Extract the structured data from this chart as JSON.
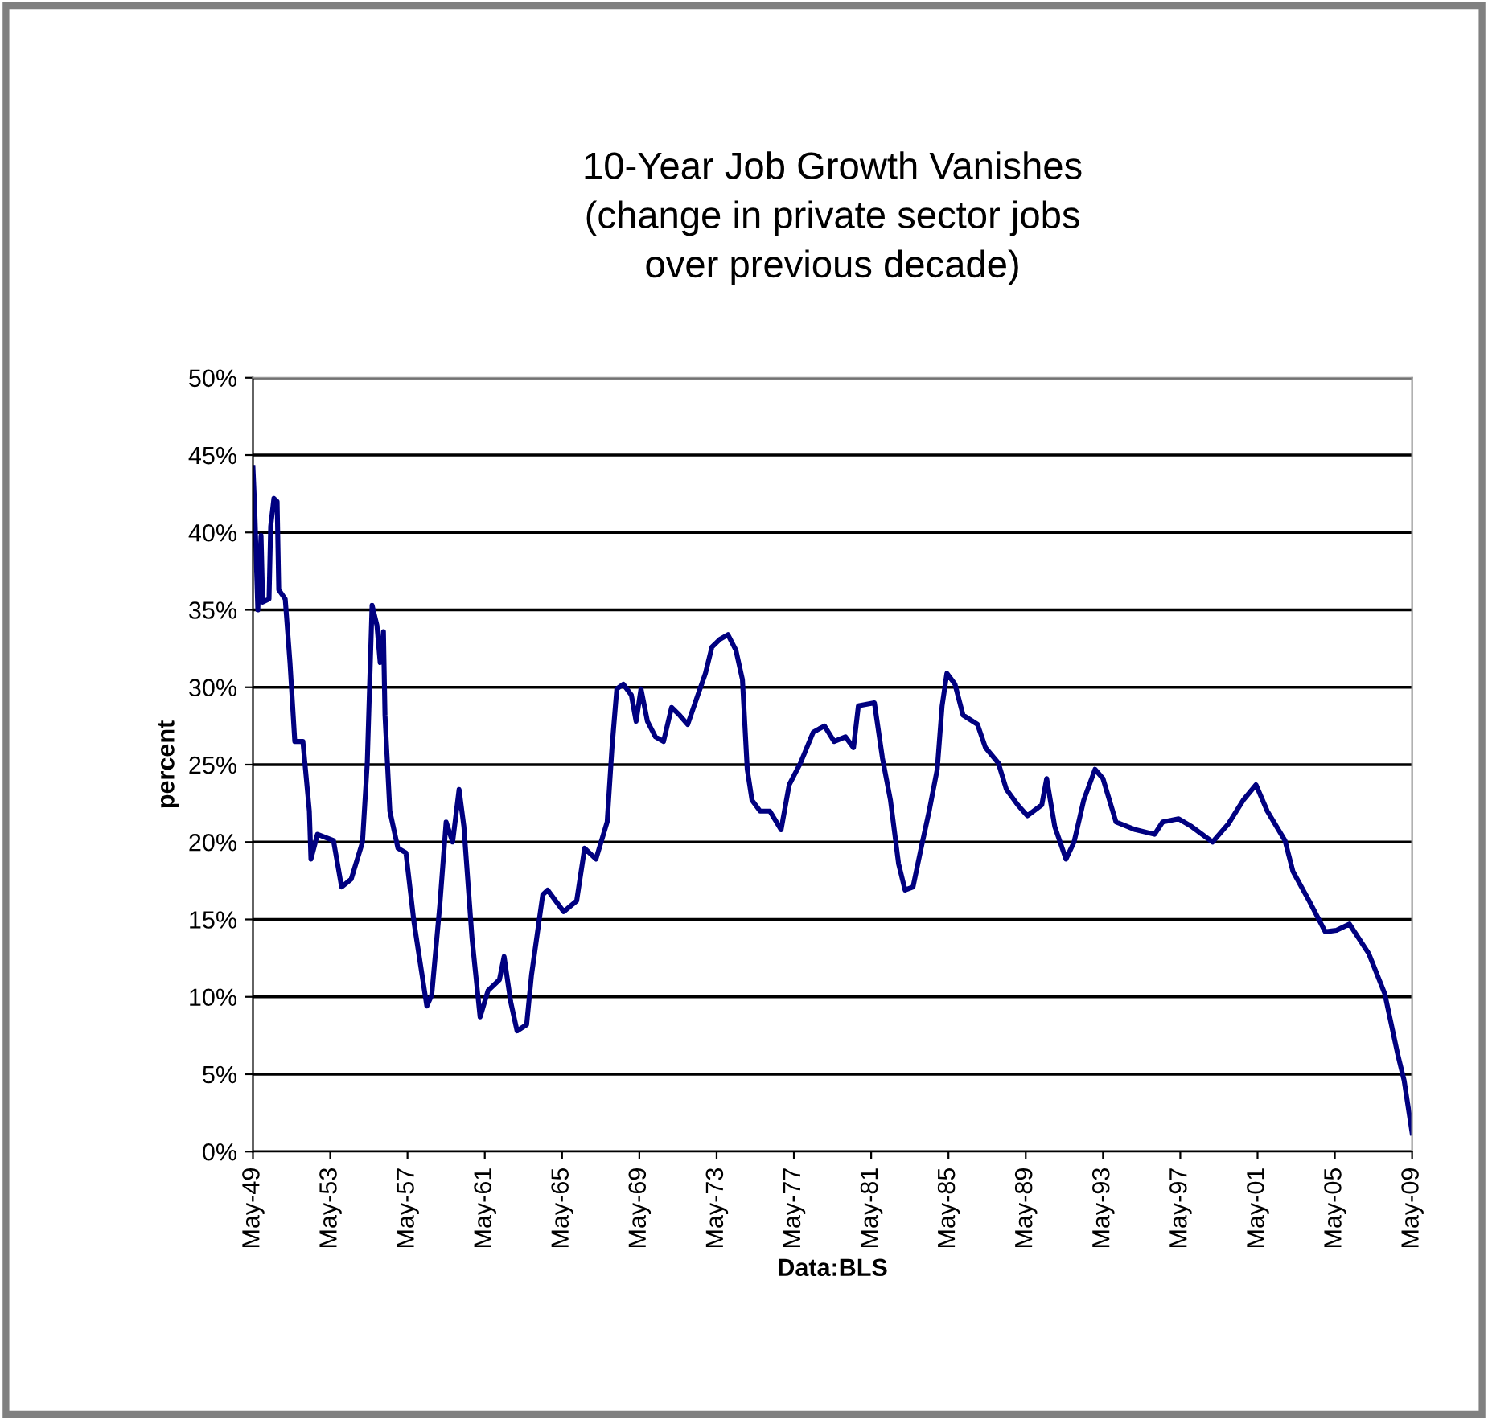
{
  "chart_data": {
    "type": "line",
    "title": "10-Year Job Growth Vanishes\n(change in private sector jobs\nover previous decade)",
    "xlabel": "Data:BLS",
    "ylabel": "percent",
    "x": [
      "1949-05",
      "1949-06",
      "1949-08",
      "1949-10",
      "1949-11",
      "1950-03",
      "1950-04",
      "1950-06",
      "1950-08",
      "1950-09",
      "1951-01",
      "1951-04",
      "1951-07",
      "1951-12",
      "1952-04",
      "1952-05",
      "1952-09",
      "1953-07",
      "1953-12",
      "1954-06",
      "1955-01",
      "1955-04",
      "1955-07",
      "1955-10",
      "1955-12",
      "1956-02",
      "1956-03",
      "1956-06",
      "1956-11",
      "1957-04",
      "1957-09",
      "1958-05",
      "1958-08",
      "1959-01",
      "1959-05",
      "1959-09",
      "1960-01",
      "1960-04",
      "1960-09",
      "1961-02",
      "1961-07",
      "1962-02",
      "1962-05",
      "1962-09",
      "1963-01",
      "1963-07",
      "1963-10",
      "1964-05",
      "1964-08",
      "1965-06",
      "1966-02",
      "1966-07",
      "1967-02",
      "1967-09",
      "1967-12",
      "1968-03",
      "1968-07",
      "1968-12",
      "1969-03",
      "1969-06",
      "1969-10",
      "1970-03",
      "1970-08",
      "1971-01",
      "1971-06",
      "1971-11",
      "1972-05",
      "1972-10",
      "1973-02",
      "1973-07",
      "1973-12",
      "1974-05",
      "1974-09",
      "1974-12",
      "1975-03",
      "1975-08",
      "1976-02",
      "1976-09",
      "1977-02",
      "1977-09",
      "1978-05",
      "1978-12",
      "1979-06",
      "1980-01",
      "1980-06",
      "1980-09",
      "1981-07",
      "1981-12",
      "1982-05",
      "1982-10",
      "1983-02",
      "1983-07",
      "1983-12",
      "1984-05",
      "1984-10",
      "1985-01",
      "1985-04",
      "1985-09",
      "1986-02",
      "1986-11",
      "1987-04",
      "1987-12",
      "1988-05",
      "1988-12",
      "1989-06",
      "1990-03",
      "1990-06",
      "1990-11",
      "1991-06",
      "1991-11",
      "1992-05",
      "1992-12",
      "1993-05",
      "1994-01",
      "1995-01",
      "1996-01",
      "1996-06",
      "1997-04",
      "1997-12",
      "1999-01",
      "1999-11",
      "2000-08",
      "2001-04",
      "2001-11",
      "2002-10",
      "2003-03",
      "2004-01",
      "2004-11",
      "2005-06",
      "2006-02",
      "2007-02",
      "2007-12",
      "2008-08",
      "2008-12",
      "2009-05"
    ],
    "series": [
      {
        "color": "#000080",
        "values": [
          44.2,
          41.8,
          35,
          39.8,
          35.5,
          35.7,
          40.4,
          42.2,
          42,
          36.3,
          35.7,
          31.6,
          26.5,
          26.5,
          22,
          18.9,
          20.5,
          20.1,
          17.1,
          17.6,
          20,
          25.1,
          35.3,
          34,
          31.6,
          33.6,
          28.2,
          22,
          19.6,
          19.3,
          14.8,
          9.4,
          10.1,
          15.9,
          21.3,
          20,
          23.4,
          21,
          13.8,
          8.7,
          10.4,
          11.1,
          12.6,
          9.7,
          7.8,
          8.2,
          11.4,
          16.6,
          16.9,
          15.5,
          16.2,
          19.6,
          18.9,
          21.3,
          26.1,
          29.9,
          30.2,
          29.5,
          27.8,
          29.9,
          27.8,
          26.8,
          26.5,
          28.7,
          28.2,
          27.6,
          29.4,
          30.9,
          32.6,
          33.1,
          33.4,
          32.4,
          30.5,
          24.7,
          22.7,
          22,
          22,
          20.8,
          23.7,
          25.1,
          27.1,
          27.5,
          26.5,
          26.8,
          26.1,
          28.8,
          29,
          25.4,
          22.7,
          18.6,
          16.9,
          17.1,
          19.6,
          22,
          24.7,
          28.8,
          30.9,
          30.2,
          28.2,
          27.6,
          26.1,
          25.1,
          23.4,
          22.4,
          21.7,
          22.4,
          24.1,
          21,
          18.9,
          20,
          22.7,
          24.7,
          24.1,
          21.3,
          20.8,
          20.5,
          21.3,
          21.5,
          21,
          20,
          21.2,
          22.7,
          23.7,
          22,
          20.1,
          18.1,
          16.2,
          14.2,
          14.3,
          14.7,
          12.8,
          10.2,
          6.3,
          4.6,
          1.2
        ]
      }
    ],
    "xlim": [
      "1949-05",
      "2009-05"
    ],
    "xticks": [
      {
        "value": "1949-05",
        "label": "May-49"
      },
      {
        "value": "1953-05",
        "label": "May-53"
      },
      {
        "value": "1957-05",
        "label": "May-57"
      },
      {
        "value": "1961-05",
        "label": "May-61"
      },
      {
        "value": "1965-05",
        "label": "May-65"
      },
      {
        "value": "1969-05",
        "label": "May-69"
      },
      {
        "value": "1973-05",
        "label": "May-73"
      },
      {
        "value": "1977-05",
        "label": "May-77"
      },
      {
        "value": "1981-05",
        "label": "May-81"
      },
      {
        "value": "1985-05",
        "label": "May-85"
      },
      {
        "value": "1989-05",
        "label": "May-89"
      },
      {
        "value": "1993-05",
        "label": "May-93"
      },
      {
        "value": "1997-05",
        "label": "May-97"
      },
      {
        "value": "2001-05",
        "label": "May-01"
      },
      {
        "value": "2005-05",
        "label": "May-05"
      },
      {
        "value": "2009-05",
        "label": "May-09"
      }
    ],
    "ylim": [
      0,
      50
    ],
    "yticks": [
      {
        "value": 0,
        "label": "0%"
      },
      {
        "value": 5,
        "label": "5%"
      },
      {
        "value": 10,
        "label": "10%"
      },
      {
        "value": 15,
        "label": "15%"
      },
      {
        "value": 20,
        "label": "20%"
      },
      {
        "value": 25,
        "label": "25%"
      },
      {
        "value": 30,
        "label": "30%"
      },
      {
        "value": 35,
        "label": "35%"
      },
      {
        "value": 40,
        "label": "40%"
      },
      {
        "value": 45,
        "label": "45%"
      },
      {
        "value": 50,
        "label": "50%"
      }
    ],
    "grid": "y",
    "legend": false,
    "marker": "none",
    "line_style": "solid"
  }
}
